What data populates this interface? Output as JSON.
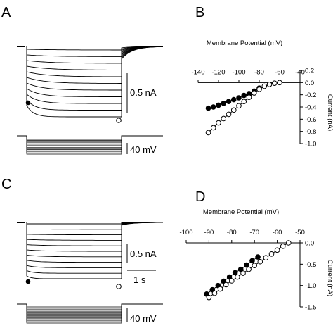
{
  "panels": {
    "a": "A",
    "b": "B",
    "c": "C",
    "d": "D"
  },
  "traces_top": {
    "current_scale": "0.5 nA",
    "voltage_scale": "40 mV"
  },
  "traces_bottom": {
    "current_scale": "0.5 nA",
    "time_scale": "1 s",
    "voltage_scale": "40 mV"
  },
  "chart_data": [
    {
      "type": "line",
      "panel": "B",
      "title": "Membrane Potential (mV)",
      "ylabel": "Current (nA)",
      "xlim": [
        -140,
        -40
      ],
      "ylim": [
        -1.0,
        0.2
      ],
      "xticks": [
        -140,
        -120,
        -100,
        -80,
        -60,
        -40
      ],
      "yticks": [
        0.2,
        0.0,
        -0.2,
        -0.4,
        -0.6,
        -0.8,
        -1.0
      ],
      "x_axis_position": "top",
      "y_axis_position": "right",
      "grid": false,
      "series": [
        {
          "marker": "filled-circle",
          "color": "#000000",
          "x": [
            -130,
            -125,
            -120,
            -115,
            -110,
            -105,
            -100,
            -95,
            -90,
            -85,
            -80
          ],
          "y": [
            -0.42,
            -0.4,
            -0.37,
            -0.34,
            -0.31,
            -0.28,
            -0.25,
            -0.21,
            -0.18,
            -0.14,
            -0.09
          ]
        },
        {
          "marker": "open-circle",
          "color": "#000000",
          "x": [
            -130,
            -125,
            -120,
            -115,
            -110,
            -105,
            -100,
            -95,
            -90,
            -85,
            -80,
            -75,
            -70,
            -65,
            -60
          ],
          "y": [
            -0.82,
            -0.74,
            -0.66,
            -0.59,
            -0.52,
            -0.45,
            -0.38,
            -0.31,
            -0.24,
            -0.17,
            -0.11,
            -0.06,
            -0.03,
            -0.01,
            0.0
          ]
        }
      ]
    },
    {
      "type": "line",
      "panel": "D",
      "title": "Membrane Potential (mV)",
      "ylabel": "Current (nA)",
      "xlim": [
        -100,
        -50
      ],
      "ylim": [
        -1.5,
        0.0
      ],
      "xticks": [
        -100,
        -90,
        -80,
        -70,
        -60,
        -50
      ],
      "yticks": [
        0.0,
        -0.5,
        -1.0,
        -1.5
      ],
      "x_axis_position": "top",
      "y_axis_position": "right",
      "grid": false,
      "series": [
        {
          "marker": "filled-circle",
          "color": "#000000",
          "x": [
            -91,
            -88.5,
            -86,
            -83.5,
            -81,
            -78.5,
            -76,
            -73.5,
            -71,
            -68.5
          ],
          "y": [
            -1.2,
            -1.1,
            -1.0,
            -0.9,
            -0.8,
            -0.7,
            -0.62,
            -0.52,
            -0.42,
            -0.33
          ]
        },
        {
          "marker": "open-circle",
          "color": "#000000",
          "x": [
            -90,
            -87.5,
            -85,
            -82.5,
            -80,
            -77.5,
            -75,
            -72.5,
            -70,
            -67.5,
            -65,
            -62.5,
            -60,
            -57.5,
            -55
          ],
          "y": [
            -1.28,
            -1.18,
            -1.08,
            -0.98,
            -0.89,
            -0.8,
            -0.71,
            -0.62,
            -0.53,
            -0.44,
            -0.35,
            -0.26,
            -0.17,
            -0.08,
            0.0
          ]
        }
      ]
    }
  ]
}
